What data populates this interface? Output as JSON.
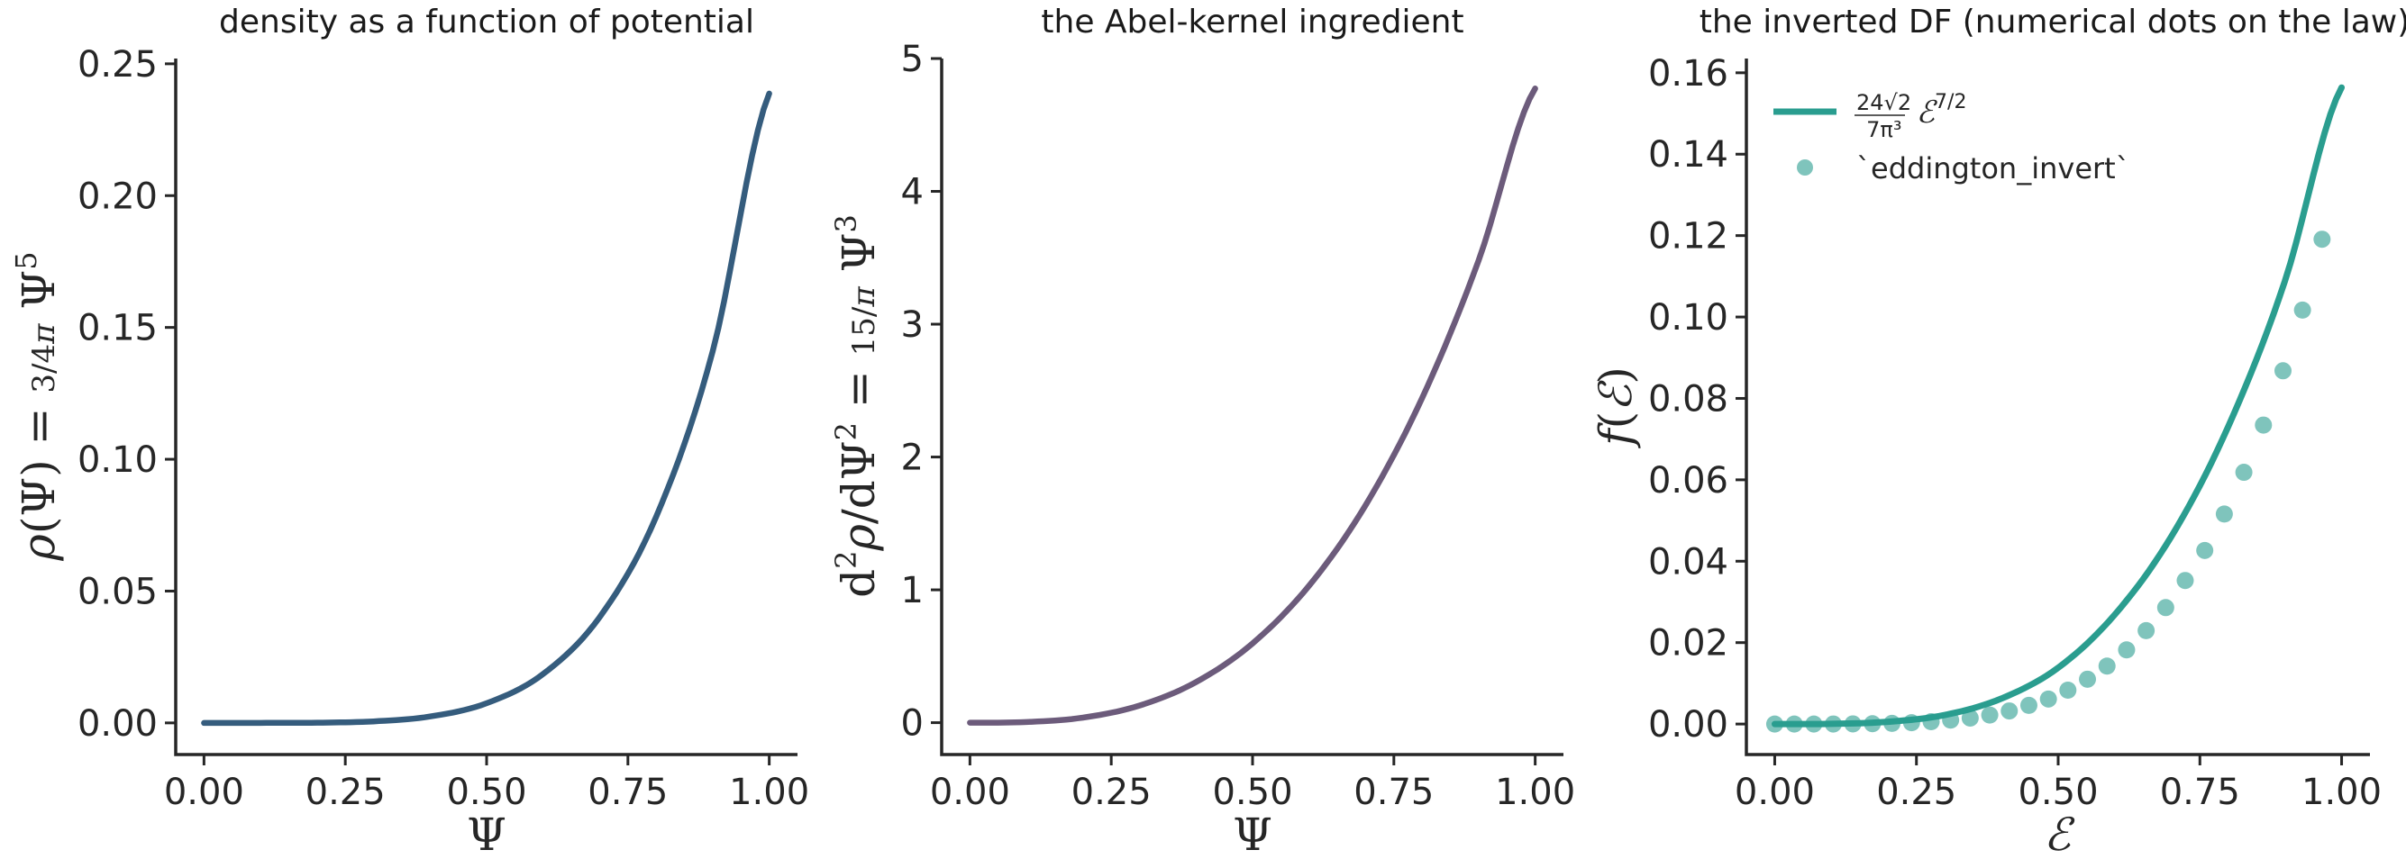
{
  "chart_data": [
    {
      "type": "line",
      "title": "density as a function of potential",
      "xlabel": "Ψ",
      "ylabel": "ρ(Ψ) = (3/4π) Ψ⁵",
      "xlim": [
        -0.05,
        1.05
      ],
      "ylim": [
        -0.012,
        0.252
      ],
      "xticks": [
        0,
        0.25,
        0.5,
        0.75,
        1.0
      ],
      "xtick_labels": [
        "0.00",
        "0.25",
        "0.50",
        "0.75",
        "1.00"
      ],
      "yticks": [
        0,
        0.05,
        0.1,
        0.15,
        0.2,
        0.25
      ],
      "ytick_labels": [
        "0.00",
        "0.05",
        "0.10",
        "0.15",
        "0.20",
        "0.25"
      ],
      "grid": false,
      "series": [
        {
          "color": "#355c7d",
          "x": [
            0,
            0.1,
            0.2,
            0.3,
            0.4,
            0.5,
            0.6,
            0.7,
            0.8,
            0.9,
            1.0
          ],
          "y": [
            0,
            2.4e-06,
            7.64e-05,
            0.00058,
            0.00244,
            0.00746,
            0.01856,
            0.04012,
            0.07822,
            0.14096,
            0.2387
          ]
        }
      ]
    },
    {
      "type": "line",
      "title": "the Abel-kernel ingredient",
      "xlabel": "Ψ",
      "ylabel": "d²ρ/dΨ² = (15/π) Ψ³",
      "xlim": [
        -0.05,
        1.05
      ],
      "ylim": [
        -0.24,
        5.0
      ],
      "xticks": [
        0,
        0.25,
        0.5,
        0.75,
        1.0
      ],
      "xtick_labels": [
        "0.00",
        "0.25",
        "0.50",
        "0.75",
        "1.00"
      ],
      "yticks": [
        0,
        1,
        2,
        3,
        4,
        5
      ],
      "ytick_labels": [
        "0",
        "1",
        "2",
        "3",
        "4",
        "5"
      ],
      "grid": false,
      "series": [
        {
          "color": "#6c5b7b",
          "x": [
            0,
            0.1,
            0.2,
            0.3,
            0.4,
            0.5,
            0.6,
            0.7,
            0.8,
            0.9,
            1.0
          ],
          "y": [
            0,
            0.00477,
            0.0382,
            0.1289,
            0.3056,
            0.5968,
            1.0313,
            1.6377,
            2.4446,
            3.4807,
            4.7746
          ]
        }
      ]
    },
    {
      "type": "line",
      "title": "the inverted DF (numerical dots on the law)",
      "xlabel": "ℰ",
      "ylabel": "f(ℰ)",
      "xlim": [
        -0.05,
        1.05
      ],
      "ylim": [
        -0.0075,
        0.1635
      ],
      "xticks": [
        0,
        0.25,
        0.5,
        0.75,
        1.0
      ],
      "xtick_labels": [
        "0.00",
        "0.25",
        "0.50",
        "0.75",
        "1.00"
      ],
      "yticks": [
        0,
        0.02,
        0.04,
        0.06,
        0.08,
        0.1,
        0.12,
        0.14,
        0.16
      ],
      "ytick_labels": [
        "0.00",
        "0.02",
        "0.04",
        "0.06",
        "0.08",
        "0.10",
        "0.12",
        "0.14",
        "0.16"
      ],
      "grid": false,
      "legend_position": "upper-left",
      "series": [
        {
          "name": "(24√2 / 7π³) ℰ^(7/2)",
          "kind": "line",
          "color": "#2a9d8f",
          "x": [
            0,
            0.1,
            0.2,
            0.3,
            0.4,
            0.5,
            0.6,
            0.7,
            0.8,
            0.9,
            1.0
          ],
          "y": [
            0,
            4.93e-05,
            0.000557,
            0.00222,
            0.00627,
            0.01382,
            0.0269,
            0.04615,
            0.07307,
            0.10882,
            0.15637
          ]
        },
        {
          "name": "`eddington_invert`",
          "kind": "scatter",
          "color": "#2a9d8f",
          "x": [
            0,
            0.0345,
            0.069,
            0.1034,
            0.1379,
            0.1724,
            0.2069,
            0.2414,
            0.2759,
            0.3103,
            0.3448,
            0.3793,
            0.4138,
            0.4483,
            0.4828,
            0.5172,
            0.5517,
            0.5862,
            0.6207,
            0.6552,
            0.6897,
            0.7241,
            0.7586,
            0.7931,
            0.8276,
            0.8621,
            0.8966,
            0.931,
            0.9655
          ],
          "y": [
            0,
            1e-07,
            1.4e-06,
            6.8e-06,
            2.93e-05,
            7.33e-05,
            0.000163,
            0.000319,
            0.000567,
            0.000956,
            0.00147,
            0.0022,
            0.00321,
            0.00458,
            0.00614,
            0.00832,
            0.01101,
            0.01424,
            0.01822,
            0.02294,
            0.0286,
            0.03526,
            0.04264,
            0.05159,
            0.06184,
            0.07345,
            0.08678,
            0.1017,
            0.1191
          ]
        }
      ]
    }
  ]
}
